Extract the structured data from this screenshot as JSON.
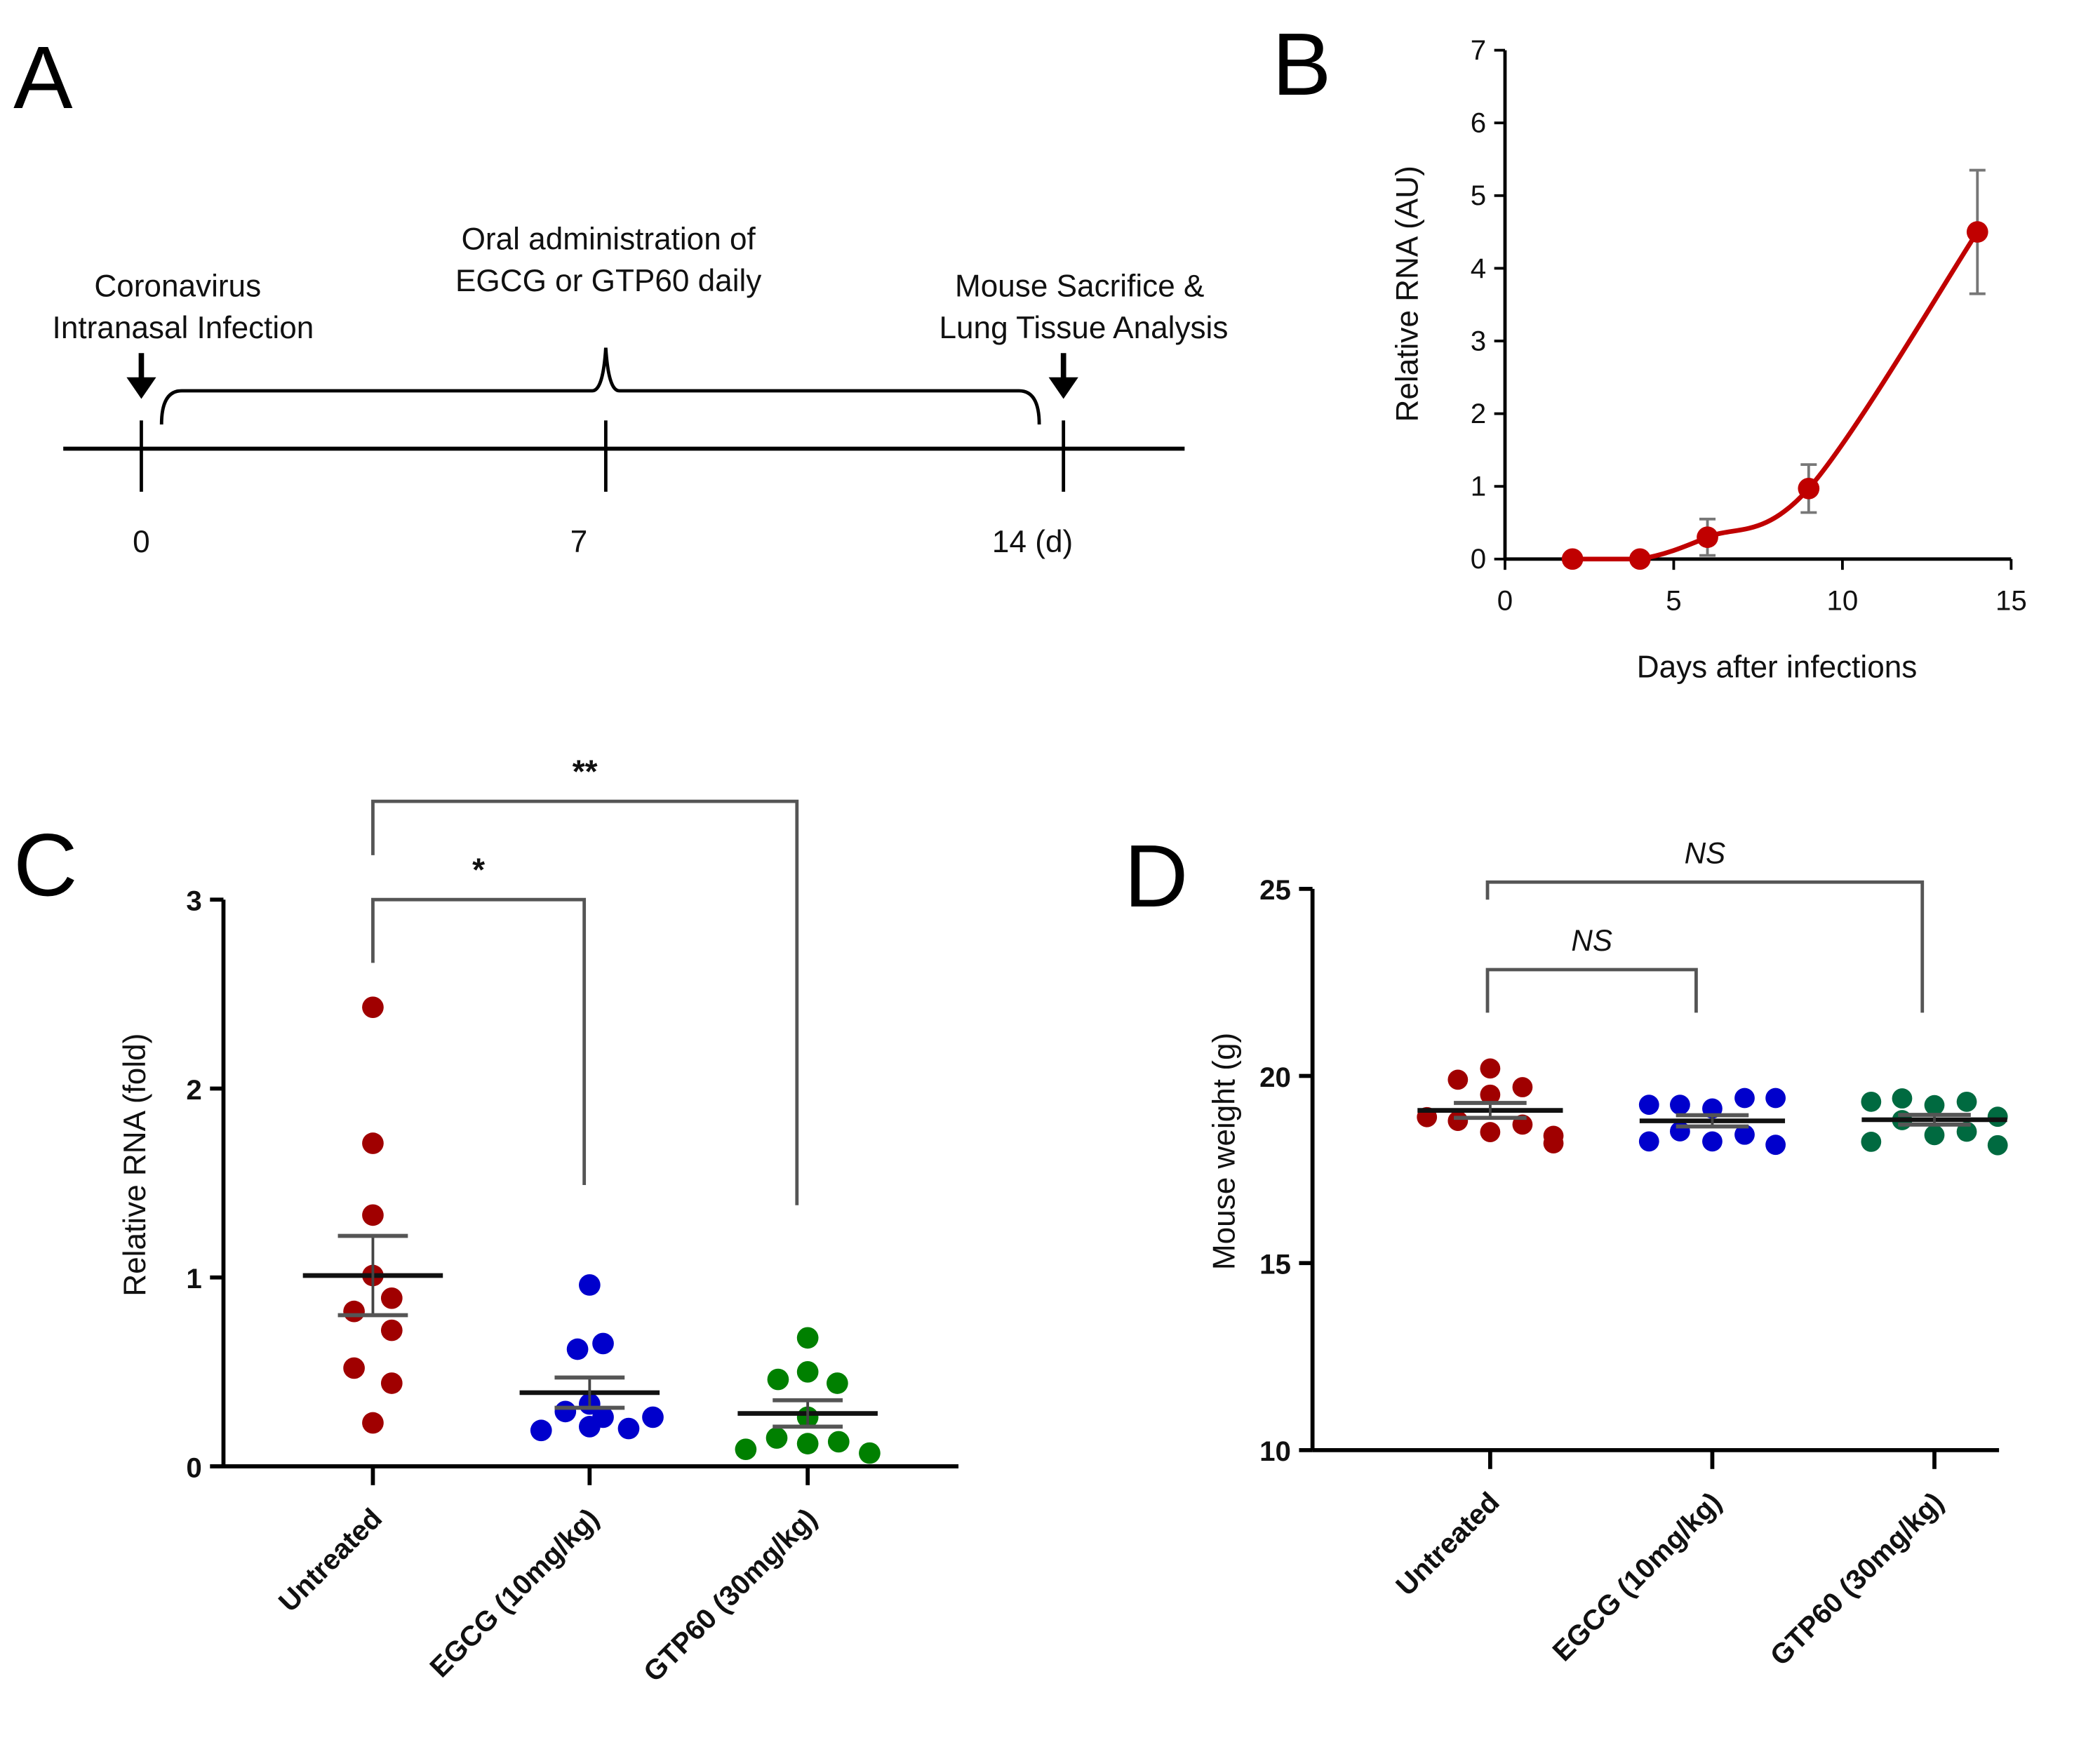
{
  "panel_a": {
    "letter": "A",
    "event_infection": "Coronavirus\nIntranasal Infection",
    "event_infection_lines": [
      "Coronavirus",
      "Intranasal Infection"
    ],
    "event_treatment_lines": [
      "Oral administration of",
      "EGCG or GTP60 daily"
    ],
    "event_sacrifice_lines": [
      "Mouse Sacrifice &",
      "Lung Tissue Analysis"
    ],
    "ticks": [
      "0",
      "7",
      "14 (d)"
    ]
  },
  "chart_data": [
    {
      "panel": "B",
      "type": "line",
      "title": "",
      "xlabel": "Days after infections",
      "ylabel": "Relative RNA (AU)",
      "xlim": [
        0,
        15
      ],
      "ylim": [
        0,
        7
      ],
      "xticks": [
        0,
        5,
        10,
        15
      ],
      "yticks": [
        0,
        1,
        2,
        3,
        4,
        5,
        6,
        7
      ],
      "x": [
        2,
        4,
        6,
        9,
        14
      ],
      "y": [
        0,
        0,
        0.3,
        0.97,
        4.5
      ],
      "error": [
        0,
        0,
        0.25,
        0.33,
        0.85
      ],
      "color": "#c00000"
    },
    {
      "panel": "C",
      "type": "scatter",
      "ylabel": "Relative RNA (fold)",
      "ylim": [
        0,
        3
      ],
      "yticks": [
        0,
        1,
        2,
        3
      ],
      "categories": [
        "Untreated",
        "EGCG (10mg/kg)",
        "GTP60 (30mg/kg)"
      ],
      "series": [
        {
          "name": "Untreated",
          "color": "#a00000",
          "values": [
            2.43,
            1.71,
            1.33,
            1.01,
            0.89,
            0.82,
            0.72,
            0.52,
            0.44,
            0.23
          ],
          "mean": 1.01,
          "sem": 0.21
        },
        {
          "name": "EGCG (10mg/kg)",
          "color": "#0000cc",
          "values": [
            0.96,
            0.65,
            0.62,
            0.33,
            0.29,
            0.26,
            0.26,
            0.21,
            0.19,
            0.2
          ],
          "mean": 0.39,
          "sem": 0.08
        },
        {
          "name": "GTP60 (30mg/kg)",
          "color": "#008000",
          "values": [
            0.68,
            0.5,
            0.46,
            0.44,
            0.26,
            0.15,
            0.12,
            0.13,
            0.09,
            0.07
          ],
          "mean": 0.28,
          "sem": 0.07
        }
      ],
      "annotations": [
        {
          "label": "*",
          "from": "Untreated",
          "to": "EGCG (10mg/kg)"
        },
        {
          "label": "**",
          "from": "Untreated",
          "to": "GTP60 (30mg/kg)"
        }
      ]
    },
    {
      "panel": "D",
      "type": "scatter",
      "ylabel": "Mouse weight (g)",
      "ylim": [
        10,
        25
      ],
      "yticks": [
        10,
        15,
        20,
        25
      ],
      "categories": [
        "Untreated",
        "EGCG (10mg/kg)",
        "GTP60 (30mg/kg)"
      ],
      "series": [
        {
          "name": "Untreated",
          "color": "#a00000",
          "values": [
            20.2,
            19.9,
            19.7,
            19.5,
            18.9,
            18.8,
            18.7,
            18.5,
            18.4,
            18.2
          ],
          "mean": 19.08,
          "sem": 0.2
        },
        {
          "name": "EGCG (10mg/kg)",
          "color": "#0000cc",
          "values": [
            19.23,
            19.23,
            19.13,
            19.41,
            19.41,
            18.52,
            18.43,
            18.25,
            18.25,
            18.16
          ],
          "mean": 18.8,
          "sem": 0.15
        },
        {
          "name": "GTP60 (30mg/kg)",
          "color": "#006a40",
          "values": [
            19.31,
            19.4,
            19.22,
            19.31,
            18.91,
            18.82,
            18.42,
            18.51,
            18.24,
            18.15
          ],
          "mean": 18.83,
          "sem": 0.13
        }
      ],
      "annotations": [
        {
          "label": "NS",
          "from": "Untreated",
          "to": "EGCG (10mg/kg)"
        },
        {
          "label": "NS",
          "from": "Untreated",
          "to": "GTP60 (30mg/kg)"
        }
      ]
    }
  ]
}
